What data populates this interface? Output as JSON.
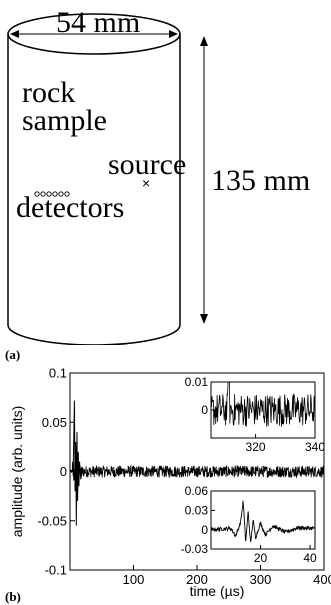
{
  "panel_a": {
    "label": "(a)",
    "diameter_label": "54 mm",
    "height_label": "135 mm",
    "sample_line1": "rock",
    "sample_line2": "sample",
    "source_label": "source",
    "source_marker": "×",
    "detectors_label": "detectors",
    "detector_count": 6
  },
  "panel_b": {
    "label": "(b)"
  },
  "chart_data": [
    {
      "type": "line",
      "xlabel": "time (µs)",
      "ylabel": "amplitude (arb. units)",
      "xlim": [
        0,
        400
      ],
      "ylim": [
        -0.1,
        0.1
      ],
      "xticks": [
        "100",
        "200",
        "300",
        "400"
      ],
      "yticks": [
        "0.1",
        "0.05",
        "0",
        "-0.05",
        "-0.1"
      ],
      "x": [
        0,
        5,
        8,
        10,
        12,
        15,
        20,
        30,
        50,
        100,
        200,
        300,
        400
      ],
      "y": [
        0,
        0.002,
        0.072,
        -0.055,
        0.04,
        -0.03,
        0.02,
        0.012,
        0.008,
        0.006,
        0.005,
        0.005,
        0.005
      ]
    },
    {
      "type": "line",
      "inset": "top",
      "xlim": [
        305,
        340
      ],
      "ylim": [
        -0.01,
        0.01
      ],
      "xticks": [
        "320",
        "340"
      ],
      "yticks": [
        "0.01",
        "0"
      ],
      "noise_amplitude": 0.006
    },
    {
      "type": "line",
      "inset": "bottom",
      "xlim": [
        0,
        42
      ],
      "ylim": [
        -0.03,
        0.06
      ],
      "xticks": [
        "20",
        "40"
      ],
      "yticks": [
        "0.06",
        "0.03",
        "0",
        "-0.03"
      ],
      "x": [
        0,
        8,
        10,
        12,
        13,
        14,
        15,
        16,
        17,
        18,
        20,
        22,
        25,
        30,
        35,
        42
      ],
      "y": [
        0,
        0.002,
        -0.01,
        0.012,
        0.045,
        -0.02,
        0.028,
        -0.022,
        0.015,
        -0.012,
        0.01,
        -0.008,
        0.006,
        -0.004,
        0.003,
        0.002
      ]
    }
  ]
}
